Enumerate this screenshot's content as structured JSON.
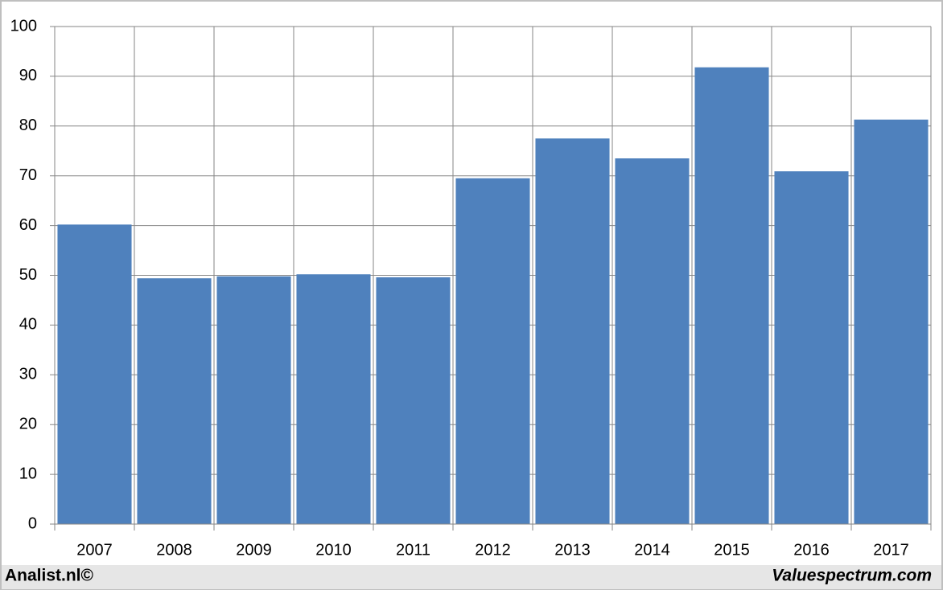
{
  "chart_data": {
    "type": "bar",
    "categories": [
      "2007",
      "2008",
      "2009",
      "2010",
      "2011",
      "2012",
      "2013",
      "2014",
      "2015",
      "2016",
      "2017"
    ],
    "values": [
      60.2,
      49.4,
      49.8,
      50.2,
      49.6,
      69.5,
      77.5,
      73.5,
      91.8,
      70.9,
      81.3
    ],
    "color": "#4f81bd",
    "ylim": [
      0,
      100
    ],
    "yticks": [
      0,
      10,
      20,
      30,
      40,
      50,
      60,
      70,
      80,
      90,
      100
    ],
    "grid": true
  },
  "footer": {
    "left": "Analist.nl©",
    "right": "Valuespectrum.com"
  }
}
